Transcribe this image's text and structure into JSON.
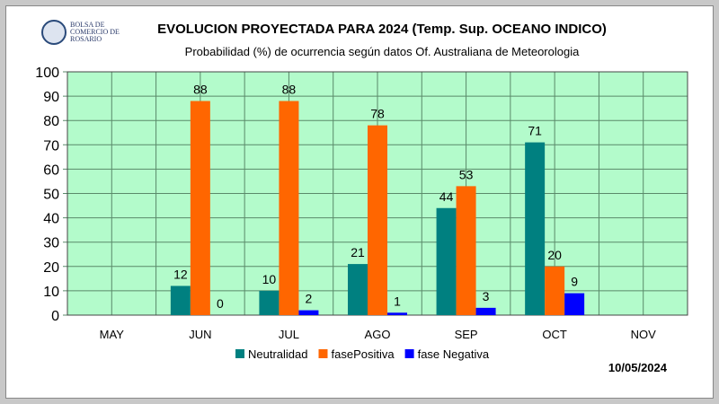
{
  "logo_text": "BOLSA DE COMERCIO DE ROSARIO",
  "date": "10/05/2024",
  "chart_data": {
    "type": "bar",
    "title": "EVOLUCION PROYECTADA PARA 2024 (Temp. Sup. OCEANO INDICO)",
    "subtitle": "Probabilidad (%) de ocurrencia según datos Of. Australiana de Meteorologia",
    "categories": [
      "MAY",
      "JUN",
      "JUL",
      "AGO",
      "SEP",
      "OCT",
      "NOV"
    ],
    "series": [
      {
        "name": "Neutralidad",
        "color": "#008080",
        "values": [
          null,
          12,
          10,
          21,
          44,
          71,
          null
        ]
      },
      {
        "name": "fasePositiva",
        "color": "#ff6600",
        "values": [
          null,
          88,
          88,
          78,
          53,
          20,
          null
        ]
      },
      {
        "name": "fase Negativa",
        "color": "#0000ff",
        "values": [
          null,
          0,
          2,
          1,
          3,
          9,
          null
        ]
      }
    ],
    "ylim": [
      0,
      100
    ],
    "yticks": [
      0,
      10,
      20,
      30,
      40,
      50,
      60,
      70,
      80,
      90,
      100
    ],
    "grid": true,
    "plot_bg": "#b3fbcb",
    "legend": "bottom"
  }
}
